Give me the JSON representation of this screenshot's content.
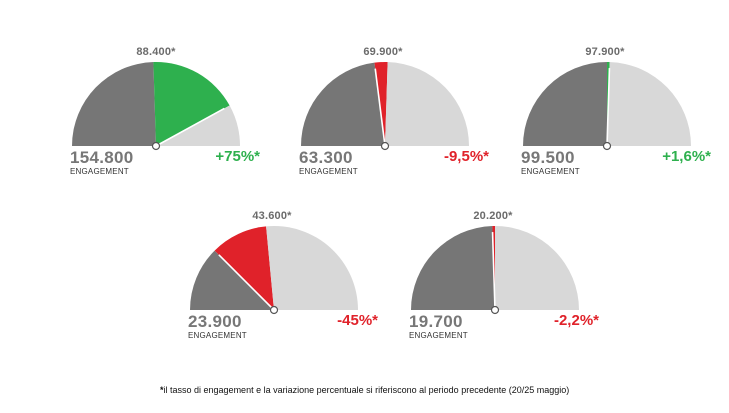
{
  "colors": {
    "dark_sector": "#767676",
    "light_sector": "#d8d8d8",
    "increase": "#2eb04e",
    "decrease": "#e0222a",
    "needle": "#ffffff"
  },
  "engagement_label": "ENGAGEMENT",
  "footnote": {
    "bullet": "*",
    "text": "il tasso di engagement e la variazione percentuale si riferiscono al periodo precedente (20/25 maggio)"
  },
  "chart_data": {
    "type": "gauge",
    "series": [
      {
        "current_label": "154.800",
        "previous_label": "88.400*",
        "change_label": "+75%*",
        "direction": "up",
        "current_fraction": 0.84,
        "previous_fraction": 0.49
      },
      {
        "current_label": "63.300",
        "previous_label": "69.900*",
        "change_label": "-9,5%*",
        "direction": "down",
        "current_fraction": 0.46,
        "previous_fraction": 0.51
      },
      {
        "current_label": "99.500",
        "previous_label": "97.900*",
        "change_label": "+1,6%*",
        "direction": "up",
        "current_fraction": 0.51,
        "previous_fraction": 0.5
      },
      {
        "current_label": "23.900",
        "previous_label": "43.600*",
        "change_label": "-45%*",
        "direction": "down",
        "current_fraction": 0.25,
        "previous_fraction": 0.47
      },
      {
        "current_label": "19.700",
        "previous_label": "20.200*",
        "change_label": "-2,2%*",
        "direction": "down",
        "current_fraction": 0.49,
        "previous_fraction": 0.5
      }
    ]
  }
}
